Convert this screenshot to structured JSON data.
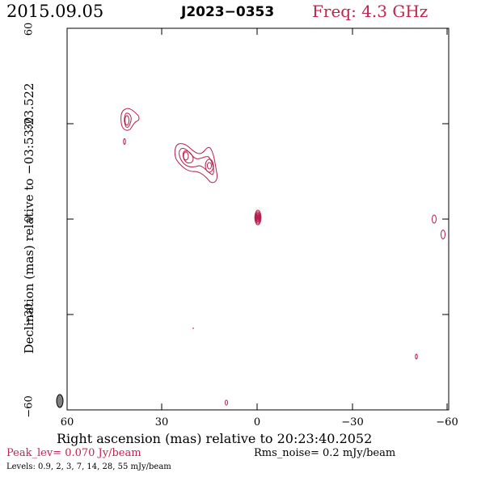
{
  "header": {
    "date": "2015.09.05",
    "source": "J2023−0353",
    "freq": "Freq: 4.3 GHz"
  },
  "axes": {
    "xlabel": "Right ascension (mas) relative to 20:23:40.2052",
    "ylabel": "Declination (mas) relative to −03:53:23.522",
    "xticks": [
      "60",
      "30",
      "0",
      "−30",
      "−60"
    ],
    "yticks": [
      "60",
      "30",
      "0",
      "−30",
      "−60"
    ],
    "xlim": [
      60,
      -60
    ],
    "ylim": [
      -60,
      60
    ]
  },
  "footer": {
    "peak": "Peak_lev=  0.070 Jy/beam",
    "rms": "Rms_noise=   0.2 mJy/beam",
    "levels": "Levels: 0.9,    2,    3,    7,   14,   28,   55 mJy/beam"
  },
  "colors": {
    "contour": "#b5204a",
    "accent": "#c0254f",
    "axis": "#000000",
    "beam_fill": "#808080"
  },
  "image_data": {
    "levels_mJy": [
      0.9,
      2,
      3,
      7,
      14,
      28,
      55
    ],
    "beam": {
      "ra": 55,
      "dec": -57,
      "major_mas": 4,
      "minor_mas": 2,
      "pa_deg": 0
    },
    "components": [
      {
        "ra": 0,
        "dec": 0.5,
        "rings": [
          [
            1.0,
            2.3
          ],
          [
            0.8,
            1.85
          ],
          [
            0.65,
            1.45
          ],
          [
            0.5,
            1.1
          ],
          [
            0.36,
            0.8
          ],
          [
            0.22,
            0.5
          ],
          [
            0.1,
            0.25
          ]
        ]
      }
    ]
  }
}
